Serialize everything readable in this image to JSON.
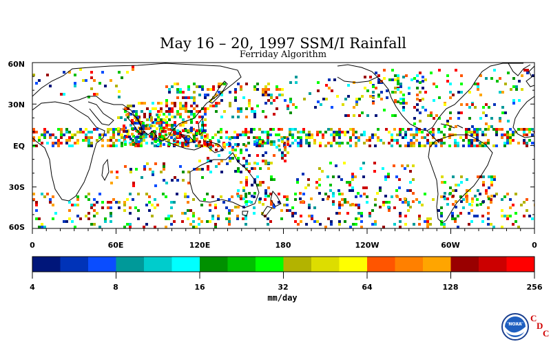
{
  "header": {
    "title": "May 16 – 20, 1997 SSM/I Rainfall",
    "subtitle": "Ferriday Algorithm"
  },
  "map": {
    "lat_labels": [
      "60N",
      "30N",
      "EQ",
      "30S",
      "60S"
    ],
    "lon_labels": [
      "0",
      "60E",
      "120E",
      "180",
      "120W",
      "60W",
      "0"
    ]
  },
  "colorbar": {
    "colors": [
      "#00167a",
      "#0033b8",
      "#0a4dff",
      "#009999",
      "#00cccc",
      "#00ffff",
      "#009000",
      "#00c000",
      "#00ff00",
      "#b3b300",
      "#dddd00",
      "#ffff00",
      "#ff5500",
      "#ff8000",
      "#ffa500",
      "#990000",
      "#cc0000",
      "#ff0000"
    ],
    "tick_labels": [
      "4",
      "8",
      "16",
      "32",
      "64",
      "128",
      "256"
    ],
    "units": "mm/day"
  },
  "logo": {
    "text": "NOAA",
    "letters": [
      "C",
      "D",
      "C"
    ]
  }
}
